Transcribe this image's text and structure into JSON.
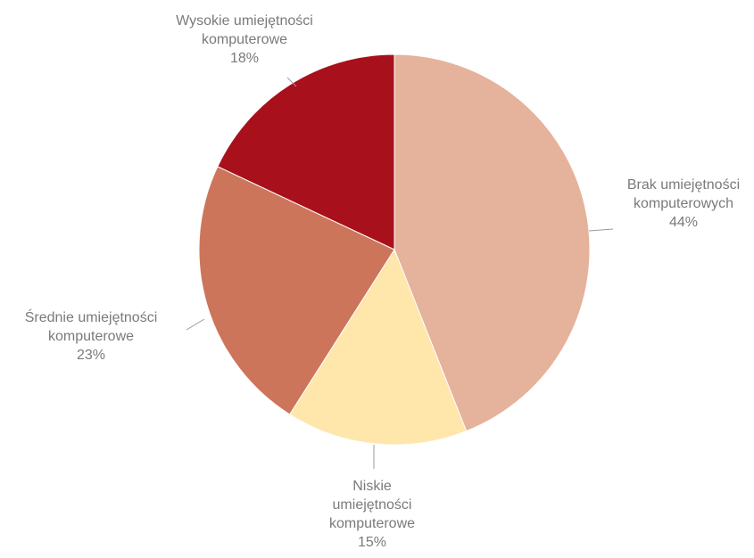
{
  "chart_data": {
    "type": "pie",
    "title": "",
    "slices": [
      {
        "label_lines": [
          "Brak umiejętności",
          "komputerowych"
        ],
        "value": 44,
        "value_label": "44%",
        "color": "#e5b29b"
      },
      {
        "label_lines": [
          "Niskie",
          "umiejętności",
          "komputerowe"
        ],
        "value": 15,
        "value_label": "15%",
        "color": "#ffe6ab"
      },
      {
        "label_lines": [
          "Średnie umiejętności",
          "komputerowe"
        ],
        "value": 23,
        "value_label": "23%",
        "color": "#cd755a"
      },
      {
        "label_lines": [
          "Wysokie umiejętności",
          "komputerowe"
        ],
        "value": 18,
        "value_label": "18%",
        "color": "#a8101c"
      }
    ],
    "legend": "none",
    "start_angle": "12 o'clock",
    "direction": "clockwise"
  }
}
